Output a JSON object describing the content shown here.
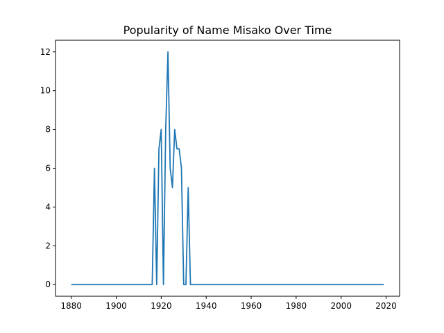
{
  "chart_data": {
    "type": "line",
    "title": "Popularity of Name Misako Over Time",
    "xlabel": "",
    "ylabel": "",
    "xlim": [
      1873,
      2026
    ],
    "ylim": [
      -0.6,
      12.6
    ],
    "x_ticks": [
      1880,
      1900,
      1920,
      1940,
      1960,
      1980,
      2000,
      2020
    ],
    "y_ticks": [
      0,
      2,
      4,
      6,
      8,
      10,
      12
    ],
    "grid": false,
    "series": [
      {
        "color": "#1f77b4",
        "x": [
          1880,
          1916,
          1917,
          1918,
          1919,
          1920,
          1921,
          1922,
          1923,
          1924,
          1925,
          1926,
          1927,
          1928,
          1929,
          1930,
          1931,
          1932,
          1933,
          2019
        ],
        "y": [
          0,
          0,
          6,
          0,
          7,
          8,
          0,
          8,
          12,
          6,
          5,
          8,
          7,
          7,
          6,
          0,
          0,
          5,
          0,
          0
        ]
      }
    ]
  }
}
